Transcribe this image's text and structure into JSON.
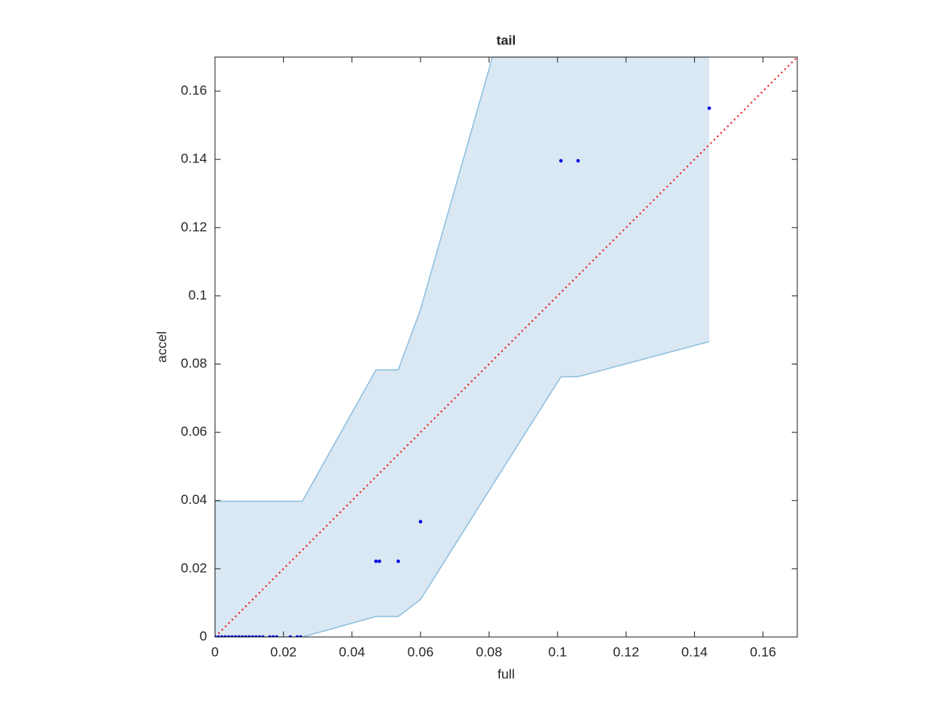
{
  "chart_data": {
    "type": "scatter",
    "title": "tail",
    "x_label": "full",
    "y_label": "accel",
    "xlim": [
      0,
      0.17
    ],
    "ylim": [
      0,
      0.17
    ],
    "xticks": [
      0,
      0.02,
      0.04,
      0.06,
      0.08,
      0.1,
      0.12,
      0.14,
      0.16
    ],
    "yticks": [
      0,
      0.02,
      0.04,
      0.06,
      0.08,
      0.1,
      0.12,
      0.14,
      0.16
    ],
    "band": {
      "color": "#dae8f4",
      "edge_color": "#8ec0e0",
      "x": [
        0,
        0.0255,
        0.047,
        0.0535,
        0.06,
        0.081,
        0.101,
        0.106,
        0.1443
      ],
      "upper": [
        0.0398,
        0.0398,
        0.0783,
        0.0783,
        0.096,
        0.17,
        0.17,
        0.17,
        0.17
      ],
      "lower": [
        0,
        0,
        0.006,
        0.006,
        0.011,
        0.0445,
        0.0763,
        0.0763,
        0.0866
      ]
    },
    "reference_line": {
      "color": "#e8191e",
      "x": [
        0,
        0.17
      ],
      "values": [
        0,
        0.17
      ]
    },
    "series": [
      {
        "color": "#0000e6",
        "x": [
          0,
          0.001,
          0.002,
          0.003,
          0.004,
          0.005,
          0.006,
          0.007,
          0.008,
          0.009,
          0.01,
          0.011,
          0.012,
          0.013,
          0.014,
          0.016,
          0.017,
          0.018,
          0.022,
          0.024,
          0.025,
          0.047,
          0.048,
          0.0535,
          0.06,
          0.101,
          0.106,
          0.1443
        ],
        "values": [
          0,
          0,
          0,
          0,
          0,
          0,
          0,
          0,
          0,
          0,
          0,
          0,
          0,
          0,
          0,
          0,
          0,
          0,
          0,
          0,
          0,
          0.0222,
          0.0222,
          0.0222,
          0.0338,
          0.1396,
          0.1396,
          0.155
        ]
      }
    ]
  }
}
